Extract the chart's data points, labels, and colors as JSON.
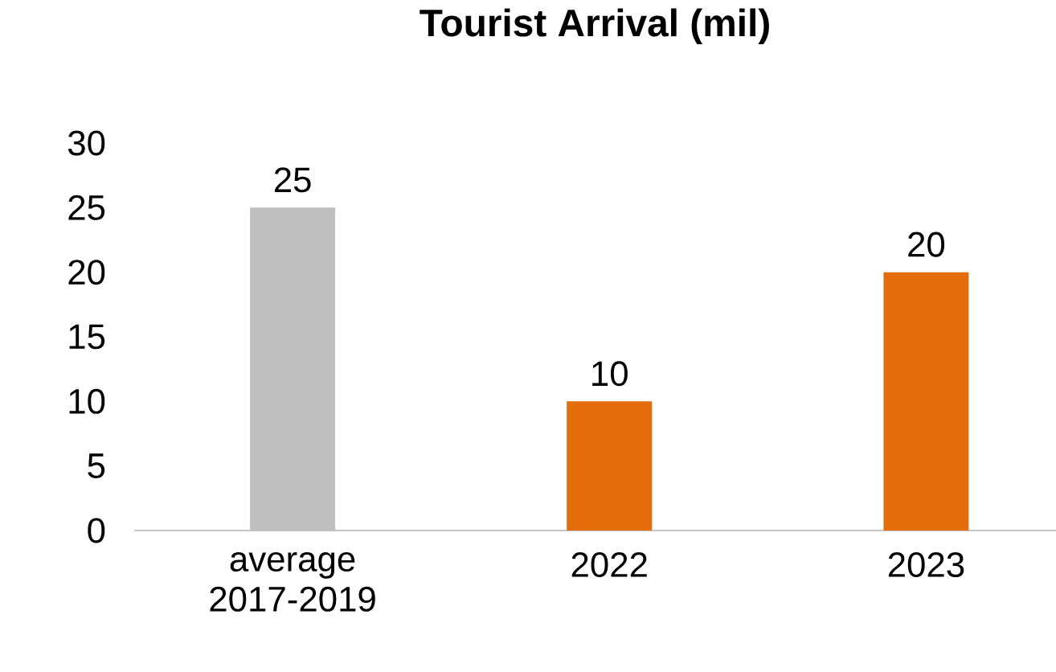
{
  "chart_data": {
    "type": "bar",
    "title": "Tourist Arrival (mil)",
    "categories": [
      "average 2017-2019",
      "2022",
      "2023"
    ],
    "values": [
      25,
      10,
      20
    ],
    "colors": [
      "#bfbfbf",
      "#e46c0a",
      "#e46c0a"
    ],
    "ylim": [
      0,
      30
    ],
    "yticks": [
      0,
      5,
      10,
      15,
      20,
      25,
      30
    ],
    "data_labels": true,
    "grid": false
  }
}
